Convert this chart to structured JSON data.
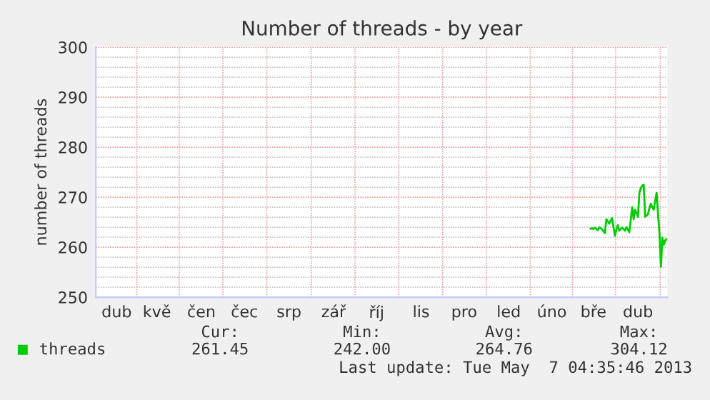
{
  "chart_data": {
    "type": "line",
    "title": "Number of threads - by year",
    "ylabel": "number of threads",
    "ylim": [
      250,
      300
    ],
    "yticks": [
      250,
      {
        "value": 252,
        "label": null
      },
      {
        "value": 254,
        "label": null
      },
      {
        "value": 256,
        "label": null
      },
      {
        "value": 258,
        "label": null
      },
      260,
      {
        "value": 262,
        "label": null
      },
      {
        "value": 264,
        "label": null
      },
      {
        "value": 266,
        "label": null
      },
      {
        "value": 268,
        "label": null
      },
      270,
      {
        "value": 272,
        "label": null
      },
      {
        "value": 274,
        "label": null
      },
      {
        "value": 276,
        "label": null
      },
      {
        "value": 278,
        "label": null
      },
      280,
      {
        "value": 282,
        "label": null
      },
      {
        "value": 284,
        "label": null
      },
      {
        "value": 286,
        "label": null
      },
      {
        "value": 288,
        "label": null
      },
      290,
      {
        "value": 292,
        "label": null
      },
      {
        "value": 294,
        "label": null
      },
      {
        "value": 296,
        "label": null
      },
      {
        "value": 298,
        "label": null
      },
      300
    ],
    "categories": [
      null,
      null,
      null,
      null,
      null,
      null,
      null,
      null,
      null,
      null,
      null,
      null,
      null,
      null,
      "dub",
      null,
      null,
      null,
      null,
      null,
      null,
      null,
      null,
      null,
      null,
      null,
      null,
      null,
      null,
      null,
      null,
      null,
      null,
      null,
      null,
      null,
      null,
      null,
      null,
      null,
      null,
      null,
      "kvě",
      null,
      null,
      null,
      null,
      null,
      null,
      null,
      null,
      null,
      null,
      null,
      null,
      null,
      null,
      null,
      null,
      null,
      null,
      null,
      null,
      null,
      null,
      null,
      null,
      null,
      null,
      null,
      null,
      null,
      null,
      "čen",
      null,
      null,
      null,
      null,
      null,
      null,
      null,
      null,
      null,
      null,
      null,
      null,
      null,
      null,
      null,
      null,
      null,
      null,
      null,
      null,
      null,
      null,
      null,
      null,
      null,
      null,
      null,
      null,
      null,
      "čec",
      null,
      null,
      null,
      null,
      null,
      null,
      null,
      null,
      null,
      null,
      null,
      null,
      null,
      null,
      null,
      null,
      null,
      null,
      null,
      null,
      null,
      null,
      null,
      null,
      null,
      null,
      null,
      null,
      null,
      null,
      "srp",
      null,
      null,
      null,
      null,
      null,
      null,
      null,
      null,
      null,
      null,
      null,
      null,
      null,
      null,
      null,
      null,
      null,
      null,
      null,
      null,
      null,
      null,
      null,
      null,
      null,
      null,
      null,
      null,
      null,
      null,
      "zář",
      null,
      null,
      null,
      null,
      null,
      null,
      null,
      null,
      null,
      null,
      null,
      null,
      null,
      null,
      null,
      null,
      null,
      null,
      null,
      null,
      null,
      null,
      null,
      null,
      null,
      null,
      null,
      null,
      null,
      "říj",
      null,
      null,
      null,
      null,
      null,
      null,
      null,
      null,
      null,
      null,
      null,
      null,
      null,
      null,
      null,
      null,
      null,
      null,
      null,
      null,
      null,
      null,
      null,
      null,
      null,
      null,
      null,
      null,
      null,
      null,
      "lis",
      null,
      null,
      null,
      null,
      null,
      null,
      null,
      null,
      null,
      null,
      null,
      null,
      null,
      null,
      null,
      null,
      null,
      null,
      null,
      null,
      null,
      null,
      null,
      null,
      null,
      null,
      null,
      null,
      null,
      "pro",
      null,
      null,
      null,
      null,
      null,
      null,
      null,
      null,
      null,
      null,
      null,
      null,
      null,
      null,
      null,
      null,
      null,
      null,
      null,
      null,
      null,
      null,
      null,
      null,
      null,
      null,
      null,
      null,
      null,
      null,
      "led",
      null,
      null,
      null,
      null,
      null,
      null,
      null,
      null,
      null,
      null,
      null,
      null,
      null,
      null,
      null,
      null,
      null,
      null,
      null,
      null,
      null,
      null,
      null,
      null,
      null,
      null,
      null,
      null,
      null,
      "úno",
      null,
      null,
      null,
      null,
      null,
      null,
      null,
      null,
      null,
      null,
      null,
      null,
      null,
      null,
      null,
      null,
      null,
      null,
      null,
      null,
      null,
      null,
      null,
      null,
      null,
      null,
      null,
      null,
      "bře",
      null,
      null,
      null,
      null,
      null,
      null,
      null,
      null,
      null,
      null,
      null,
      null,
      null,
      null,
      null,
      null,
      null,
      null,
      null,
      null,
      null,
      null,
      null,
      null,
      null,
      null,
      null,
      null,
      null,
      null,
      "dub",
      null,
      null,
      null,
      null,
      null,
      null,
      null,
      null,
      null,
      null,
      null,
      null,
      null,
      null,
      null,
      null,
      null,
      null,
      null,
      null
    ],
    "grid": true,
    "legend": "bottom left",
    "series": [
      {
        "name": "threads",
        "color": "#00cc00",
        "values": [
          null,
          null,
          null,
          null,
          null,
          null,
          null,
          null,
          null,
          null,
          null,
          null,
          null,
          null,
          null,
          null,
          null,
          null,
          null,
          null,
          null,
          null,
          null,
          null,
          null,
          null,
          null,
          null,
          null,
          null,
          null,
          null,
          null,
          null,
          null,
          null,
          null,
          null,
          null,
          null,
          null,
          null,
          null,
          null,
          null,
          null,
          null,
          null,
          null,
          null,
          null,
          null,
          null,
          null,
          null,
          null,
          null,
          null,
          null,
          null,
          null,
          null,
          null,
          null,
          null,
          null,
          null,
          null,
          null,
          null,
          null,
          null,
          null,
          null,
          null,
          null,
          null,
          null,
          null,
          null,
          null,
          null,
          null,
          null,
          null,
          null,
          null,
          null,
          null,
          null,
          null,
          null,
          null,
          null,
          null,
          null,
          null,
          null,
          null,
          null,
          null,
          null,
          null,
          null,
          null,
          null,
          null,
          null,
          null,
          null,
          null,
          null,
          null,
          null,
          null,
          null,
          null,
          null,
          null,
          null,
          null,
          null,
          null,
          null,
          null,
          null,
          null,
          null,
          null,
          null,
          null,
          null,
          null,
          null,
          null,
          null,
          null,
          null,
          null,
          null,
          null,
          null,
          null,
          null,
          null,
          null,
          null,
          null,
          null,
          null,
          null,
          null,
          null,
          null,
          null,
          null,
          null,
          null,
          null,
          null,
          null,
          null,
          null,
          null,
          null,
          null,
          null,
          null,
          null,
          null,
          null,
          null,
          null,
          null,
          null,
          null,
          null,
          null,
          null,
          null,
          null,
          null,
          null,
          null,
          null,
          null,
          null,
          null,
          null,
          null,
          null,
          null,
          null,
          null,
          null,
          null,
          null,
          null,
          null,
          null,
          null,
          null,
          null,
          null,
          null,
          null,
          null,
          null,
          null,
          null,
          null,
          null,
          null,
          null,
          null,
          null,
          null,
          null,
          null,
          null,
          null,
          null,
          null,
          null,
          null,
          null,
          null,
          null,
          null,
          null,
          null,
          null,
          null,
          null,
          null,
          null,
          null,
          null,
          null,
          null,
          null,
          null,
          null,
          null,
          null,
          null,
          null,
          null,
          null,
          null,
          null,
          null,
          null,
          null,
          null,
          null,
          null,
          null,
          null,
          null,
          null,
          null,
          null,
          null,
          null,
          null,
          null,
          null,
          null,
          null,
          null,
          null,
          null,
          null,
          null,
          null,
          null,
          null,
          null,
          null,
          null,
          null,
          null,
          null,
          null,
          null,
          null,
          null,
          null,
          null,
          null,
          null,
          null,
          null,
          null,
          null,
          null,
          null,
          null,
          null,
          null,
          null,
          null,
          null,
          null,
          null,
          null,
          null,
          null,
          null,
          null,
          null,
          null,
          null,
          null,
          null,
          null,
          null,
          null,
          null,
          null,
          null,
          null,
          null,
          null,
          null,
          null,
          null,
          null,
          null,
          null,
          null,
          null,
          null,
          null,
          null,
          null,
          null,
          null,
          null,
          null,
          null,
          null,
          null,
          263.7,
          263.8,
          263.6,
          263.9,
          263.7,
          263.4,
          264.0,
          263.8,
          263.6,
          263.2,
          262.8,
          265.6,
          265.2,
          264.7,
          265.3,
          265.8,
          264.0,
          262.3,
          263.5,
          264.4,
          263.3,
          263.6,
          263.9,
          263.6,
          263.3,
          264.0,
          263.5,
          263.0,
          265.5,
          268.0,
          265.6,
          267.5,
          266.8,
          266.1,
          270.9,
          271.8,
          272.3,
          272.5,
          266.1,
          266.3,
          266.6,
          267.8,
          268.7,
          268.0,
          267.5,
          269.3,
          270.9,
          266.5,
          262.8,
          256.1,
          261.9,
          260.5,
          261.4,
          261.6
        ]
      }
    ],
    "annotations": [
      "Cur:",
      "261.45",
      "Min:",
      "242.00",
      "Avg:",
      "264.76",
      "Max:",
      "304.12",
      "Last update: Tue May  7 04:35:46 2013"
    ]
  }
}
